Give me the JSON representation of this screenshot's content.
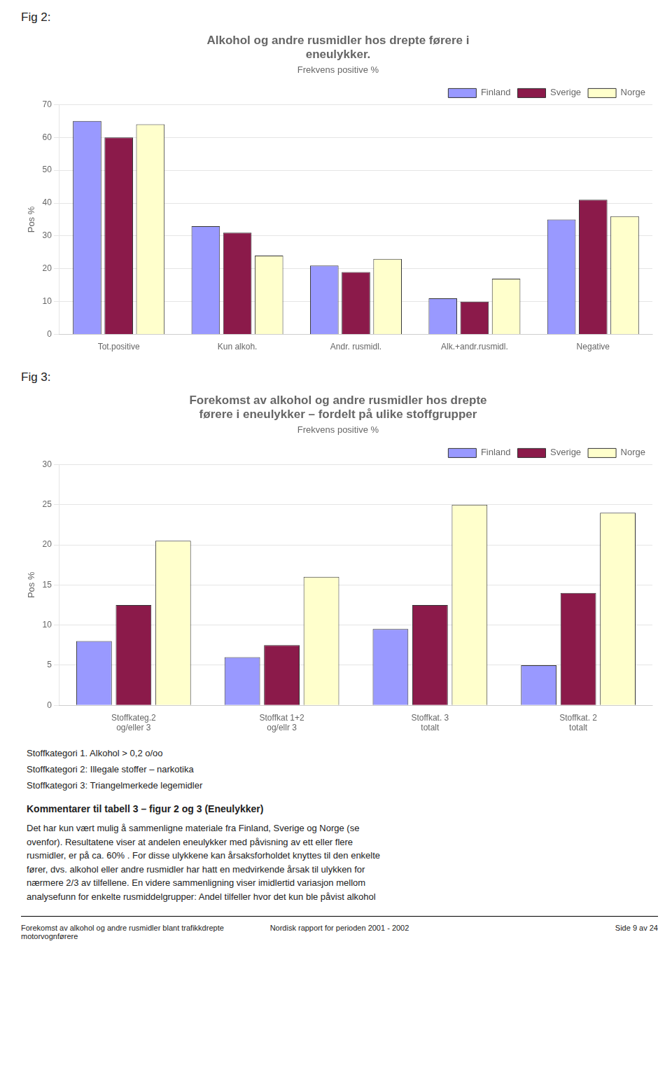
{
  "chart_data": [
    {
      "type": "bar",
      "annotations": [
        "Fig 2:"
      ],
      "title": [
        "Alkohol og andre rusmidler hos drepte førere i",
        "eneulykker."
      ],
      "subtitle": "Frekvens positive %",
      "ylabel": "Pos %",
      "categories": [
        "Tot.positive",
        "Kun alkoh.",
        "Andr. rusmidl.",
        "Alk.+andr.rusmidl.",
        "Negative"
      ],
      "series": [
        {
          "name": "Finland",
          "color": "#9999FF",
          "values": [
            65,
            33,
            21,
            11,
            35
          ]
        },
        {
          "name": "Sverige",
          "color": "#8B1A4A",
          "values": [
            60,
            31,
            19,
            10,
            41
          ]
        },
        {
          "name": "Norge",
          "color": "#FFFFCC",
          "values": [
            64,
            24,
            23,
            17,
            36
          ]
        }
      ],
      "ylim": [
        0,
        70
      ],
      "yticks": [
        0,
        10,
        20,
        30,
        40,
        50,
        60,
        70
      ],
      "grid": true,
      "legend": "top-right"
    },
    {
      "type": "bar",
      "annotations": [
        "Fig 3:"
      ],
      "title": [
        "Forekomst av alkohol og andre rusmidler hos drepte",
        "førere i eneulykker – fordelt på ulike stoffgrupper"
      ],
      "subtitle": "Frekvens positive %",
      "ylabel": "Pos %",
      "categories": [
        "Stoffkateg.2\nog/eller 3",
        "Stoffkat 1+2\nog/ellr 3",
        "Stoffkat. 3\ntotalt",
        "Stoffkat. 2\ntotalt"
      ],
      "series": [
        {
          "name": "Finland",
          "color": "#9999FF",
          "values": [
            8,
            6,
            9.5,
            5
          ]
        },
        {
          "name": "Sverige",
          "color": "#8B1A4A",
          "values": [
            12.5,
            7.5,
            12.5,
            14
          ]
        },
        {
          "name": "Norge",
          "color": "#FFFFCC",
          "values": [
            20.5,
            16,
            25,
            24
          ]
        }
      ],
      "ylim": [
        0,
        30
      ],
      "yticks": [
        0,
        5,
        10,
        15,
        20,
        25,
        30
      ],
      "grid": true,
      "legend": "top-right"
    }
  ],
  "text_block": {
    "lines": [
      "Stoffkategori 1.  Alkohol > 0,2 o/oo",
      "Stoffkategori 2:  Illegale stoffer – narkotika",
      "Stoffkategori 3:  Triangelmerkede legemidler"
    ],
    "commentary_title": "Kommentarer til tabell 3 – figur 2 og 3 (Eneulykker)",
    "commentary_body": "Det har kun vært mulig å sammenligne materiale fra Finland, Sverige og Norge (se\novenfor).  Resultatene viser at  andelen eneulykker  med påvisning av ett eller flere\nrusmidler, er på ca.  60% .  For disse ulykkene kan årsaksforholdet  knyttes til den enkelte\nfører, dvs.  alkohol eller andre rusmidler har hatt en medvirkende årsak til ulykken for\nnærmere 2/3 av tilfellene.  En videre sammenligning  viser imidlertid variasjon mellom\nanalysefunn  for enkelte rusmiddelgrupper:  Andel tilfeller hvor det kun ble påvist alkohol"
  },
  "footer": {
    "left": "Forekomst av alkohol og andre rusmidler blant trafikkdrepte motorvognførere",
    "center": "Nordisk rapport for perioden 2001 - 2002",
    "right": "Side 9 av 24"
  }
}
